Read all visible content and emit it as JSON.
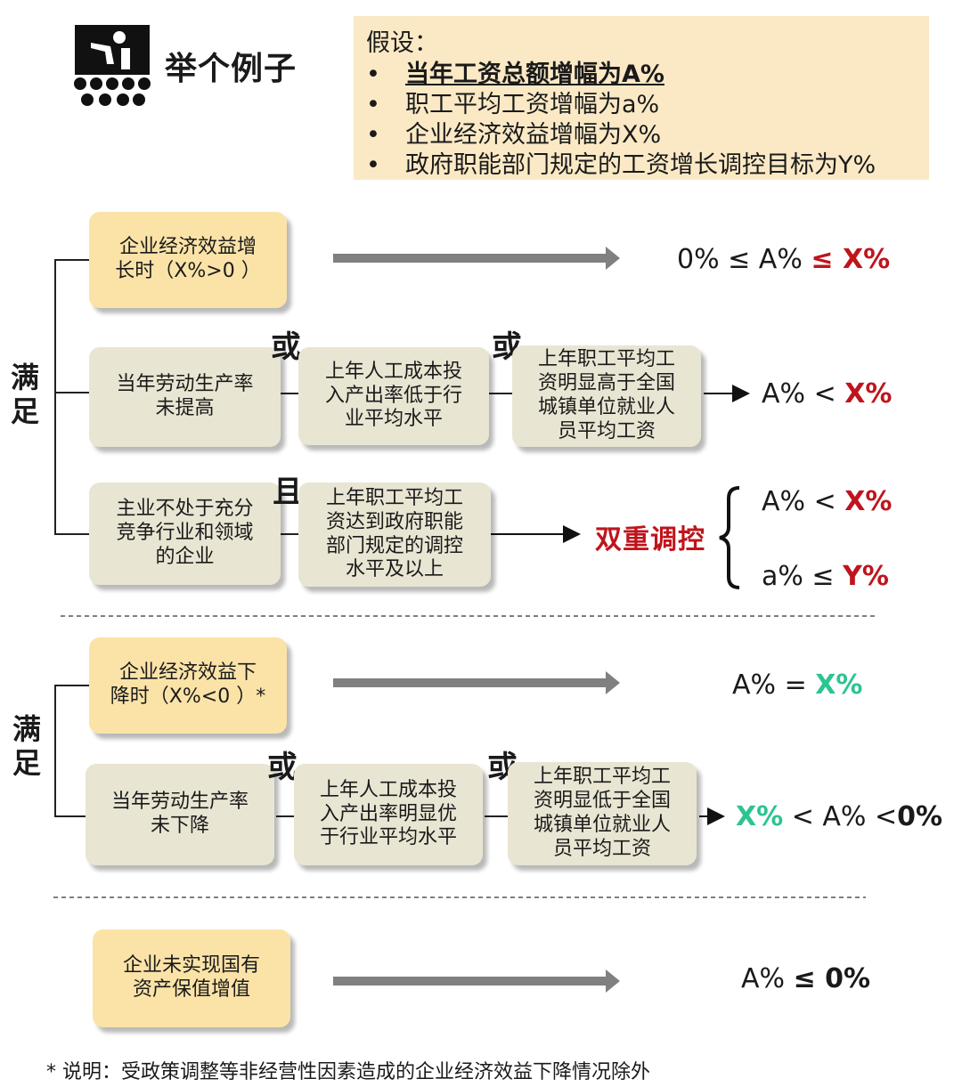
{
  "header": {
    "title": "举个例子",
    "assumptions": {
      "title": "假设：",
      "items": [
        "当年工资总额增幅为A%",
        "职工平均工资增幅为a%",
        "企业经济效益增幅为X%",
        "政府职能部门规定的工资增长调控目标为Y%"
      ]
    }
  },
  "colors": {
    "red": "#c0141c",
    "green": "#2cc490",
    "yellow_box": "#fbe3a8",
    "grey_box": "#e9e5d3",
    "assume_bg": "#fbe9c5",
    "arrow": "#808080"
  },
  "section1": {
    "label": "满足",
    "row1": {
      "condition": "企业经济效益增\n长时（X%>0  ）",
      "result_prefix": "0% ≤ A% ",
      "result_em": "≤ X%"
    },
    "row2": {
      "conditions": [
        "当年劳动生产率\n未提高",
        "上年人工成本投\n入产出率低于行\n业平均水平",
        "上年职工平均工\n资明显高于全国\n城镇单位就业人\n员平均工资"
      ],
      "connector1": "或",
      "connector2": "或",
      "result_prefix": "A% < ",
      "result_em": "X%"
    },
    "row3": {
      "conditions": [
        "主业不处于充分\n竞争行业和领域\n的企业",
        "上年职工平均工\n资达到政府职能\n部门规定的调控\n水平及以上"
      ],
      "connector": "且",
      "result_label": "双重调控",
      "result1_prefix": "A% < ",
      "result1_em": "X%",
      "result2_prefix": "a% ≤ ",
      "result2_em": "Y%"
    }
  },
  "section2": {
    "label": "满足",
    "row1": {
      "condition": "企业经济效益下\n降时（X%<0  ）*",
      "result_prefix": "A% =  ",
      "result_em": "X%"
    },
    "row2": {
      "conditions": [
        "当年劳动生产率\n未下降",
        "上年人工成本投\n入产出率明显优\n于行业平均水平",
        "上年职工平均工\n资明显低于全国\n城镇单位就业人\n员平均工资"
      ],
      "connector1": "或",
      "connector2": "或",
      "result_em": "X%",
      "result_suffix": " < A% <",
      "result_suffix_bold": "0%"
    }
  },
  "section3": {
    "condition": "企业未实现国有\n资产保值增值",
    "result_prefix": "A% ",
    "result_em": "≤ 0%"
  },
  "footnote": "* 说明：受政策调整等非经营性因素造成的企业经济效益下降情况除外"
}
